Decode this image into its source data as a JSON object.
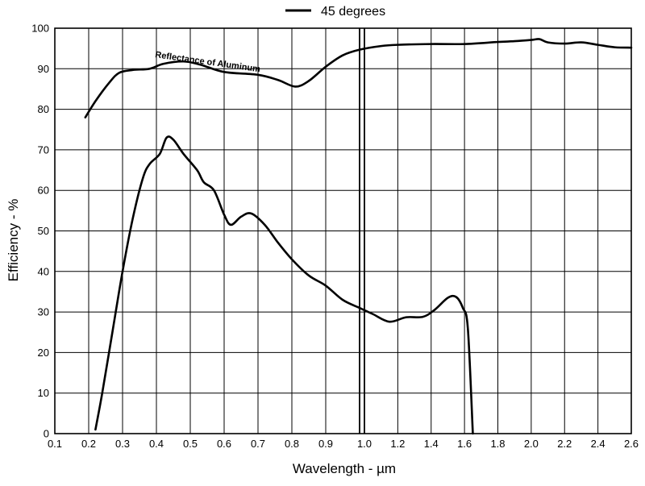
{
  "chart_data": {
    "type": "line",
    "xlabel": "Wavelength - µm",
    "ylabel": "Efficiency - %",
    "xlim": [
      0.1,
      2.6
    ],
    "ylim": [
      0,
      100
    ],
    "grid": true,
    "legend_placement": "top-center",
    "legend": [
      {
        "label": "45 degrees",
        "series": "efficiency"
      }
    ],
    "annotations": [
      {
        "text": "Reflectance of Aluminum",
        "series": "reflectance"
      }
    ],
    "x_ticks_small": [
      {
        "v": 0.1,
        "label": "0.1"
      },
      {
        "v": 0.2,
        "label": "0.2"
      },
      {
        "v": 0.3,
        "label": "0.3"
      },
      {
        "v": 0.4,
        "label": "0.4"
      },
      {
        "v": 0.5,
        "label": "0.5"
      },
      {
        "v": 0.6,
        "label": "0.6"
      },
      {
        "v": 0.7,
        "label": "0.7"
      },
      {
        "v": 0.8,
        "label": "0.8"
      },
      {
        "v": 0.9,
        "label": "0.9"
      },
      {
        "v": 1.0,
        "label": "1.0"
      }
    ],
    "x_ticks_large": [
      {
        "v": 1.0,
        "label": "1.0"
      },
      {
        "v": 1.2,
        "label": "1.2"
      },
      {
        "v": 1.4,
        "label": "1.4"
      },
      {
        "v": 1.6,
        "label": "1.6"
      },
      {
        "v": 1.8,
        "label": "1.8"
      },
      {
        "v": 2.0,
        "label": "2.0"
      },
      {
        "v": 2.2,
        "label": "2.2"
      },
      {
        "v": 2.4,
        "label": "2.4"
      },
      {
        "v": 2.6,
        "label": "2.6"
      }
    ],
    "y_ticks": [
      {
        "v": 0,
        "label": "0"
      },
      {
        "v": 10,
        "label": "10"
      },
      {
        "v": 20,
        "label": "20"
      },
      {
        "v": 30,
        "label": "30"
      },
      {
        "v": 40,
        "label": "40"
      },
      {
        "v": 50,
        "label": "50"
      },
      {
        "v": 60,
        "label": "60"
      },
      {
        "v": 70,
        "label": "70"
      },
      {
        "v": 80,
        "label": "80"
      },
      {
        "v": 90,
        "label": "90"
      },
      {
        "v": 100,
        "label": "100"
      }
    ],
    "series": [
      {
        "id": "reflectance",
        "color": "#000000",
        "points": [
          [
            0.19,
            78
          ],
          [
            0.22,
            82
          ],
          [
            0.26,
            86.5
          ],
          [
            0.29,
            89
          ],
          [
            0.33,
            89.7
          ],
          [
            0.38,
            90
          ],
          [
            0.42,
            91.2
          ],
          [
            0.48,
            91.8
          ],
          [
            0.53,
            91
          ],
          [
            0.6,
            89.2
          ],
          [
            0.7,
            88.5
          ],
          [
            0.76,
            87.2
          ],
          [
            0.81,
            85.6
          ],
          [
            0.85,
            87
          ],
          [
            0.9,
            90.5
          ],
          [
            0.95,
            93.3
          ],
          [
            1.0,
            94.7
          ],
          [
            1.1,
            95.6
          ],
          [
            1.2,
            95.9
          ],
          [
            1.4,
            96.1
          ],
          [
            1.6,
            96.1
          ],
          [
            1.8,
            96.6
          ],
          [
            1.9,
            96.8
          ],
          [
            2.0,
            97.1
          ],
          [
            2.05,
            97.3
          ],
          [
            2.1,
            96.5
          ],
          [
            2.2,
            96.2
          ],
          [
            2.3,
            96.5
          ],
          [
            2.4,
            95.9
          ],
          [
            2.5,
            95.3
          ],
          [
            2.6,
            95.2
          ]
        ]
      },
      {
        "id": "efficiency",
        "name": "45 degrees",
        "color": "#000000",
        "points": [
          [
            0.22,
            1
          ],
          [
            0.24,
            10
          ],
          [
            0.27,
            25
          ],
          [
            0.3,
            40
          ],
          [
            0.33,
            53
          ],
          [
            0.36,
            63
          ],
          [
            0.38,
            66.5
          ],
          [
            0.41,
            69
          ],
          [
            0.43,
            73
          ],
          [
            0.45,
            72.5
          ],
          [
            0.48,
            69
          ],
          [
            0.52,
            65
          ],
          [
            0.54,
            62
          ],
          [
            0.57,
            60
          ],
          [
            0.6,
            54
          ],
          [
            0.62,
            51.5
          ],
          [
            0.65,
            53.5
          ],
          [
            0.68,
            54.3
          ],
          [
            0.72,
            51.5
          ],
          [
            0.76,
            47
          ],
          [
            0.8,
            43
          ],
          [
            0.85,
            39
          ],
          [
            0.9,
            36.5
          ],
          [
            0.95,
            33
          ],
          [
            1.0,
            31
          ],
          [
            1.05,
            29.5
          ],
          [
            1.15,
            27.6
          ],
          [
            1.25,
            28.7
          ],
          [
            1.35,
            28.8
          ],
          [
            1.42,
            30.5
          ],
          [
            1.5,
            33.5
          ],
          [
            1.55,
            33.7
          ],
          [
            1.59,
            31
          ],
          [
            1.62,
            26
          ],
          [
            1.65,
            0
          ]
        ]
      }
    ]
  }
}
